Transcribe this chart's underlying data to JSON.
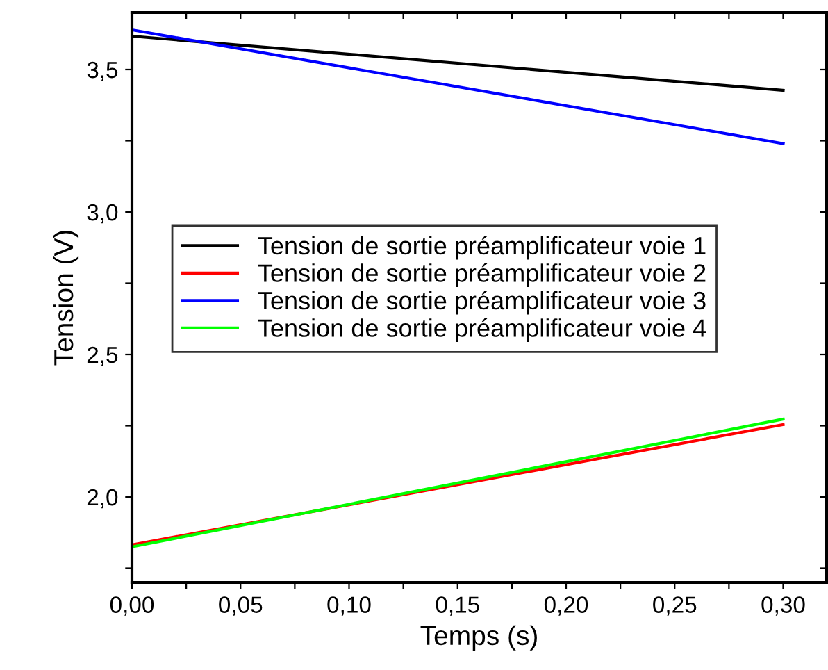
{
  "chart_data": {
    "type": "line",
    "xlabel": "Temps (s)",
    "ylabel": "Tension (V)",
    "x": [
      0,
      0.3
    ],
    "series": [
      {
        "name": "Tension de sortie préamplificateur voie 1",
        "color": "#000000",
        "values": [
          3.617,
          3.427
        ]
      },
      {
        "name": "Tension de sortie préamplificateur voie 2",
        "color": "#ff0000",
        "values": [
          1.832,
          2.254
        ]
      },
      {
        "name": "Tension de sortie préamplificateur voie 3",
        "color": "#0000ff",
        "values": [
          3.639,
          3.24
        ]
      },
      {
        "name": "Tension de sortie préamplificateur voie 4",
        "color": "#00ff00",
        "values": [
          1.825,
          2.273
        ]
      }
    ],
    "xlim": [
      0,
      0.32
    ],
    "xticks": [
      {
        "value": 0,
        "label": "0,00"
      },
      {
        "value": 0.025,
        "label": null
      },
      {
        "value": 0.05,
        "label": "0,05"
      },
      {
        "value": 0.075,
        "label": null
      },
      {
        "value": 0.1,
        "label": "0,10"
      },
      {
        "value": 0.125,
        "label": null
      },
      {
        "value": 0.15,
        "label": "0,15"
      },
      {
        "value": 0.175,
        "label": null
      },
      {
        "value": 0.2,
        "label": "0,20"
      },
      {
        "value": 0.225,
        "label": null
      },
      {
        "value": 0.25,
        "label": "0,25"
      },
      {
        "value": 0.275,
        "label": null
      },
      {
        "value": 0.3,
        "label": "0,30"
      }
    ],
    "ylim": [
      1.7,
      3.7
    ],
    "yticks": [
      {
        "value": 1.75,
        "label": null
      },
      {
        "value": 2.0,
        "label": "2,0"
      },
      {
        "value": 2.25,
        "label": null
      },
      {
        "value": 2.5,
        "label": "2,5"
      },
      {
        "value": 2.75,
        "label": null
      },
      {
        "value": 3.0,
        "label": "3,0"
      },
      {
        "value": 3.25,
        "label": null
      },
      {
        "value": 3.5,
        "label": "3,5"
      }
    ],
    "grid": false,
    "legend": "center left",
    "marker": "none",
    "line_style": "solid"
  }
}
